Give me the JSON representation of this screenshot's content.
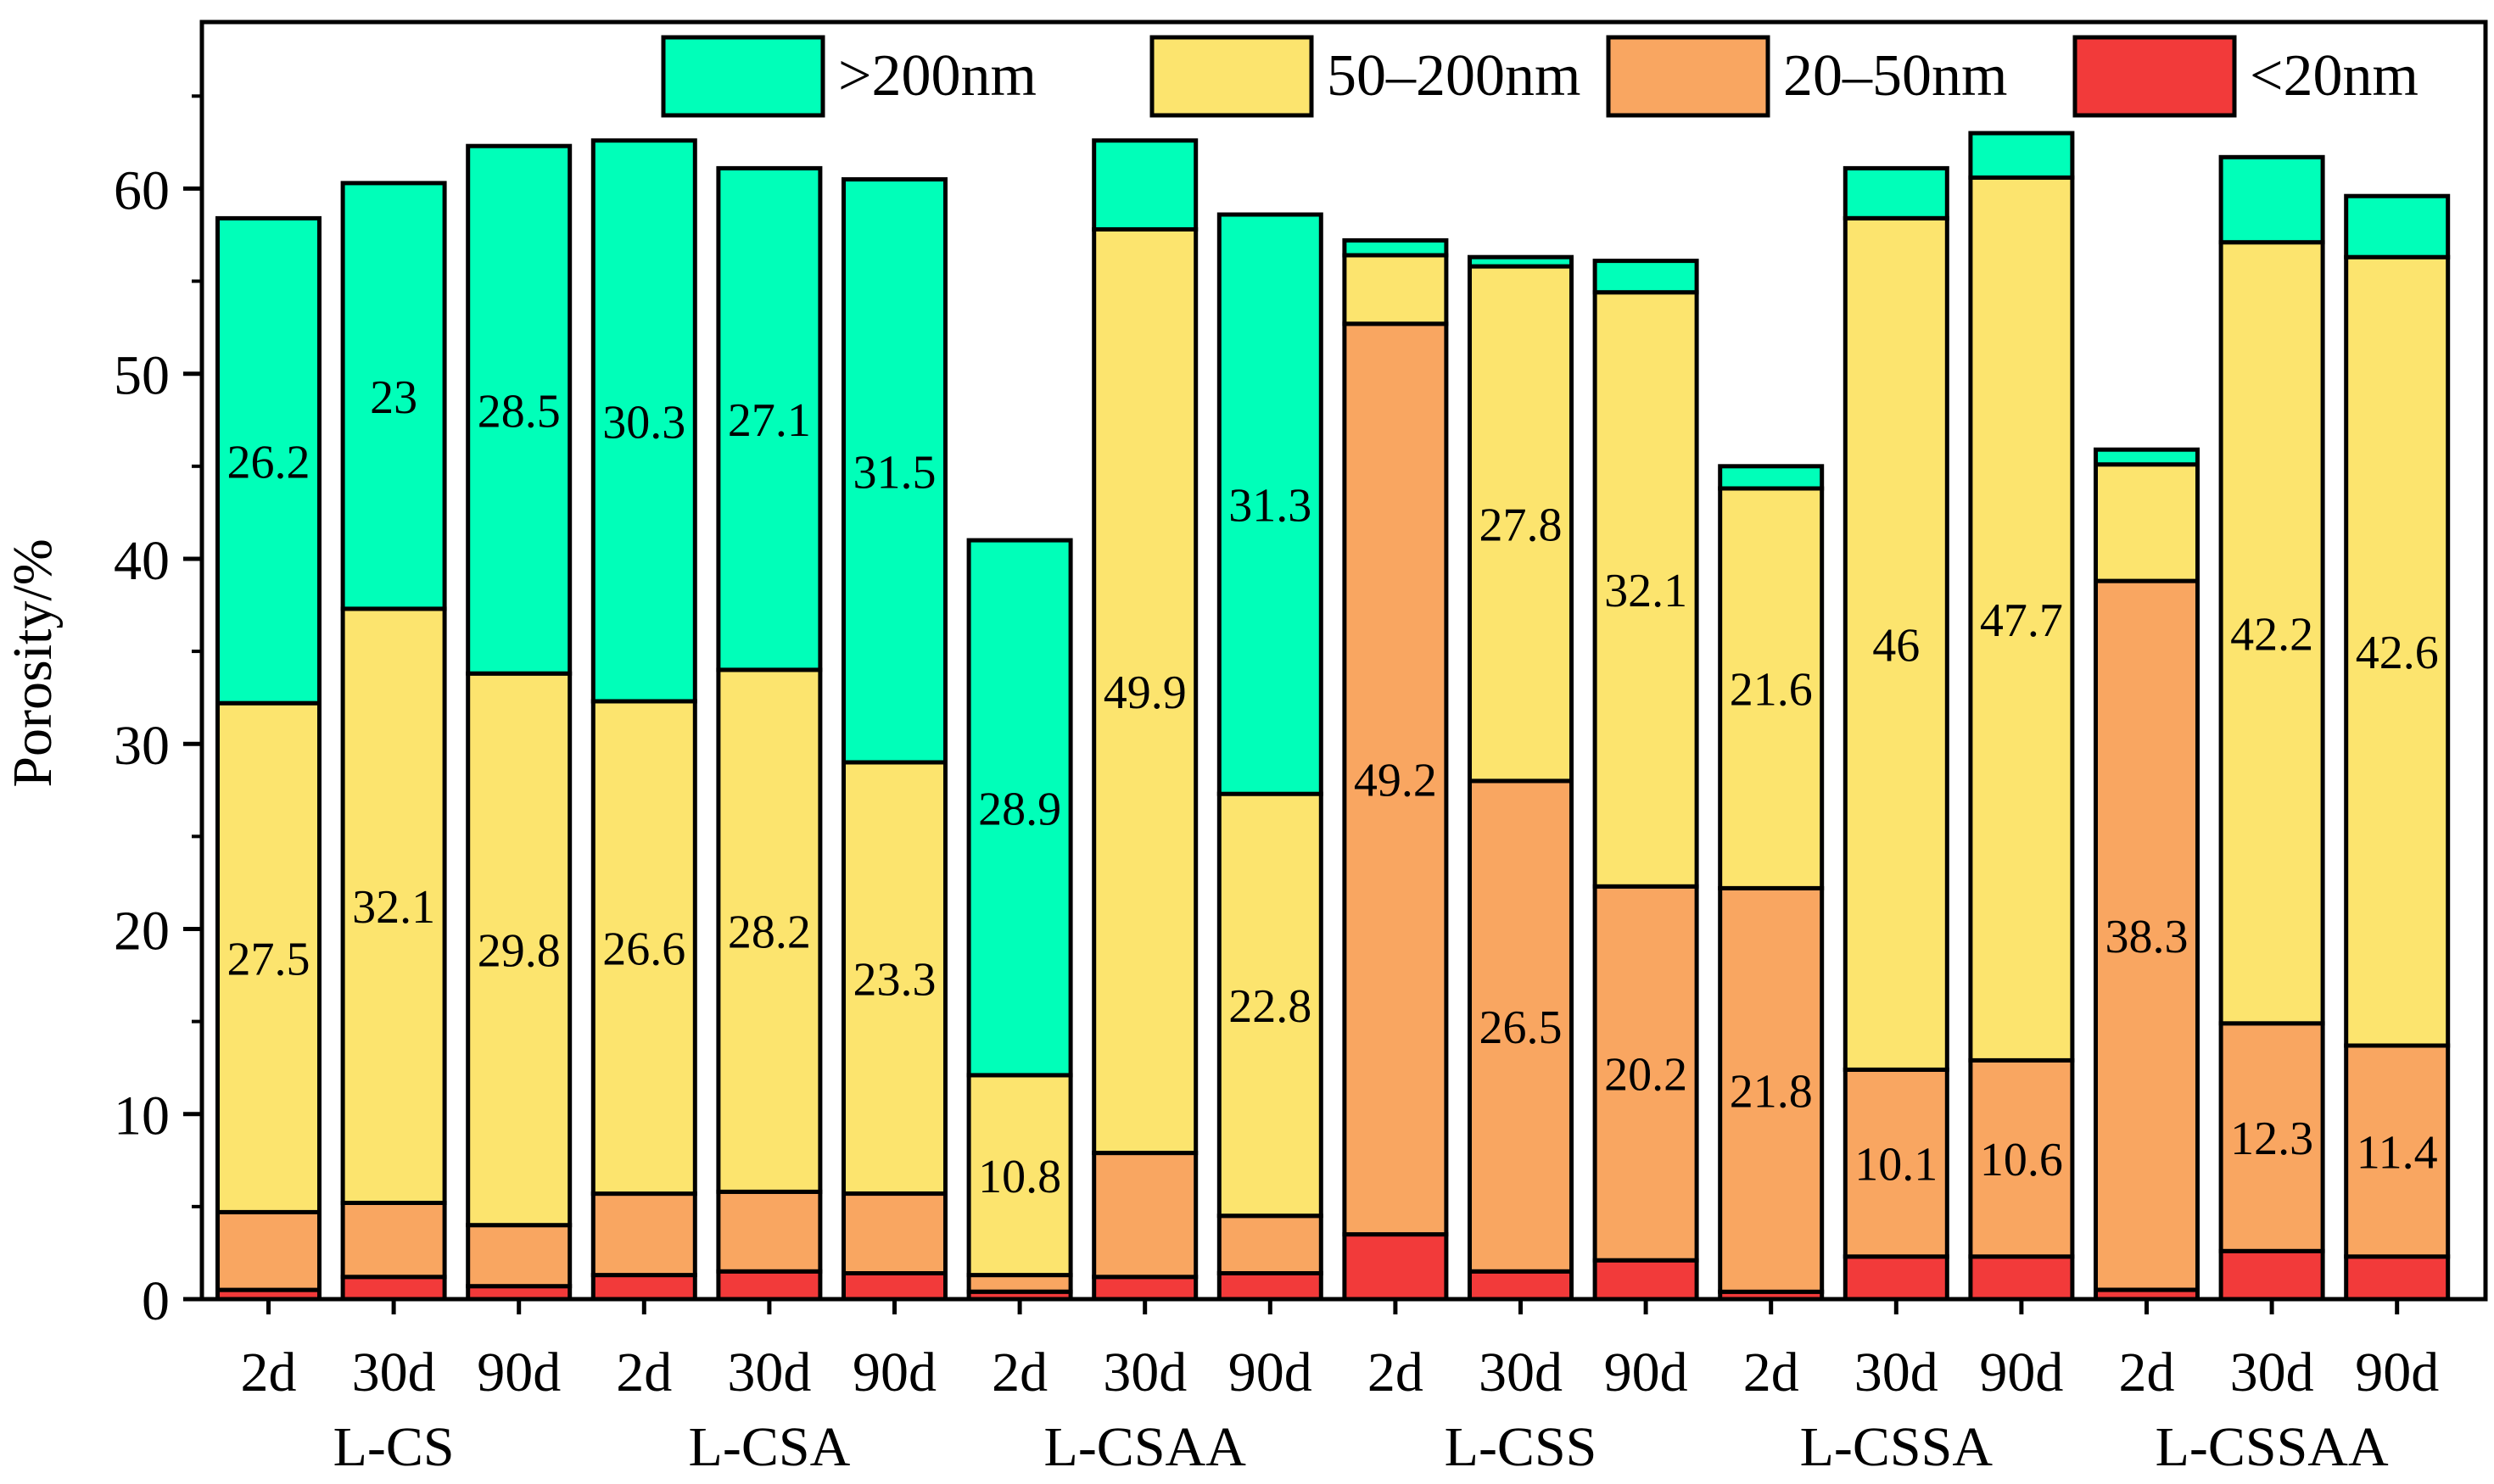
{
  "chart_data": {
    "type": "bar",
    "stacked": true,
    "ylabel": "Porosity/%",
    "ylim": [
      0,
      69
    ],
    "yticks": [
      0,
      10,
      20,
      30,
      40,
      50,
      60
    ],
    "legend_position": "top",
    "groups": [
      {
        "name": "L-CS",
        "bars": [
          "2d",
          "30d",
          "90d"
        ]
      },
      {
        "name": "L-CSA",
        "bars": [
          "2d",
          "30d",
          "90d"
        ]
      },
      {
        "name": "L-CSAA",
        "bars": [
          "2d",
          "30d",
          "90d"
        ]
      },
      {
        "name": "L-CSS",
        "bars": [
          "2d",
          "30d",
          "90d"
        ]
      },
      {
        "name": "L-CSSA",
        "bars": [
          "2d",
          "30d",
          "90d"
        ]
      },
      {
        "name": "L-CSSAA",
        "bars": [
          "2d",
          "30d",
          "90d"
        ]
      }
    ],
    "categories": [
      "2d",
      "30d",
      "90d",
      "2d",
      "30d",
      "90d",
      "2d",
      "30d",
      "90d",
      "2d",
      "30d",
      "90d",
      "2d",
      "30d",
      "90d",
      "2d",
      "30d",
      "90d"
    ],
    "series": [
      {
        "name": "<20nm",
        "color": "#f23a3a",
        "values": [
          0.5,
          1.2,
          0.7,
          1.3,
          1.5,
          1.4,
          0.4,
          1.2,
          1.4,
          3.5,
          1.5,
          2.1,
          0.4,
          2.3,
          2.3,
          0.5,
          2.6,
          2.3
        ]
      },
      {
        "name": "20–50nm",
        "color": "#f9a661",
        "values": [
          4.2,
          4.0,
          3.3,
          4.4,
          4.3,
          4.3,
          0.9,
          6.7,
          3.1,
          49.2,
          26.5,
          20.2,
          21.8,
          10.1,
          10.6,
          38.3,
          12.3,
          11.4
        ]
      },
      {
        "name": "50–200nm",
        "color": "#fce46e",
        "values": [
          27.5,
          32.1,
          29.8,
          26.6,
          28.2,
          23.3,
          10.8,
          49.9,
          22.8,
          3.7,
          27.8,
          32.1,
          21.6,
          46,
          47.7,
          6.3,
          42.2,
          42.6
        ]
      },
      {
        "name": ">200nm",
        "color": "#00ffb9",
        "values": [
          26.2,
          23,
          28.5,
          30.3,
          27.1,
          31.5,
          28.9,
          4.8,
          31.3,
          0.8,
          0.5,
          1.7,
          1.2,
          2.7,
          2.4,
          0.8,
          4.6,
          3.3
        ]
      }
    ],
    "data_labels": [
      {
        "bar": 0,
        "series": ">200nm",
        "text": "26.2"
      },
      {
        "bar": 0,
        "series": "50–200nm",
        "text": "27.5"
      },
      {
        "bar": 1,
        "series": ">200nm",
        "text": "23"
      },
      {
        "bar": 1,
        "series": "50–200nm",
        "text": "32.1"
      },
      {
        "bar": 2,
        "series": ">200nm",
        "text": "28.5"
      },
      {
        "bar": 2,
        "series": "50–200nm",
        "text": "29.8"
      },
      {
        "bar": 3,
        "series": ">200nm",
        "text": "30.3"
      },
      {
        "bar": 3,
        "series": "50–200nm",
        "text": "26.6"
      },
      {
        "bar": 4,
        "series": ">200nm",
        "text": "27.1"
      },
      {
        "bar": 4,
        "series": "50–200nm",
        "text": "28.2"
      },
      {
        "bar": 5,
        "series": ">200nm",
        "text": "31.5"
      },
      {
        "bar": 5,
        "series": "50–200nm",
        "text": "23.3"
      },
      {
        "bar": 6,
        "series": ">200nm",
        "text": "28.9"
      },
      {
        "bar": 6,
        "series": "50–200nm",
        "text": "10.8"
      },
      {
        "bar": 7,
        "series": "50–200nm",
        "text": "49.9"
      },
      {
        "bar": 8,
        "series": ">200nm",
        "text": "31.3"
      },
      {
        "bar": 8,
        "series": "50–200nm",
        "text": "22.8"
      },
      {
        "bar": 9,
        "series": "20–50nm",
        "text": "49.2"
      },
      {
        "bar": 10,
        "series": "50–200nm",
        "text": "27.8"
      },
      {
        "bar": 10,
        "series": "20–50nm",
        "text": "26.5"
      },
      {
        "bar": 11,
        "series": "50–200nm",
        "text": "32.1"
      },
      {
        "bar": 11,
        "series": "20–50nm",
        "text": "20.2"
      },
      {
        "bar": 12,
        "series": "50–200nm",
        "text": "21.6"
      },
      {
        "bar": 12,
        "series": "20–50nm",
        "text": "21.8"
      },
      {
        "bar": 13,
        "series": "50–200nm",
        "text": "46"
      },
      {
        "bar": 13,
        "series": "20–50nm",
        "text": "10.1"
      },
      {
        "bar": 14,
        "series": "50–200nm",
        "text": "47.7"
      },
      {
        "bar": 14,
        "series": "20–50nm",
        "text": "10.6"
      },
      {
        "bar": 15,
        "series": "20–50nm",
        "text": "38.3"
      },
      {
        "bar": 16,
        "series": "50–200nm",
        "text": "42.2"
      },
      {
        "bar": 16,
        "series": "20–50nm",
        "text": "12.3"
      },
      {
        "bar": 17,
        "series": "50–200nm",
        "text": "42.6"
      },
      {
        "bar": 17,
        "series": "20–50nm",
        "text": "11.4"
      }
    ],
    "legend": [
      {
        "series": ">200nm",
        "label": ">200nm"
      },
      {
        "series": "50–200nm",
        "label": "50–200nm"
      },
      {
        "series": "20–50nm",
        "label": "20–50nm"
      },
      {
        "series": "<20nm",
        "label": "<20nm"
      }
    ]
  }
}
